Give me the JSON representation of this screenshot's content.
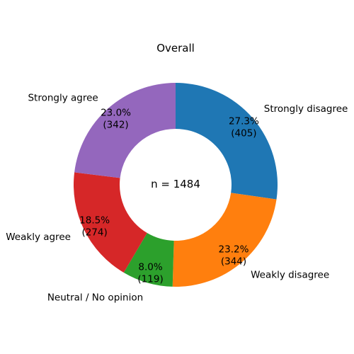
{
  "chart_data": {
    "type": "pie",
    "title": "Overall",
    "center_text": "n = 1484",
    "donut": true,
    "start_angle_deg": 90,
    "direction": "clockwise",
    "slices": [
      {
        "label": "Strongly disagree",
        "count": 405,
        "percent_text": "27.3%",
        "count_text": "(405)",
        "color": "#1f77b4"
      },
      {
        "label": "Weakly disagree",
        "count": 344,
        "percent_text": "23.2%",
        "count_text": "(344)",
        "color": "#ff7f0e"
      },
      {
        "label": "Neutral / No opinion",
        "count": 119,
        "percent_text": "8.0%",
        "count_text": "(119)",
        "color": "#2ca02c"
      },
      {
        "label": "Weakly agree",
        "count": 274,
        "percent_text": "18.5%",
        "count_text": "(274)",
        "color": "#d62728"
      },
      {
        "label": "Strongly agree",
        "count": 342,
        "percent_text": "23.0%",
        "count_text": "(342)",
        "color": "#9467bd"
      }
    ]
  }
}
